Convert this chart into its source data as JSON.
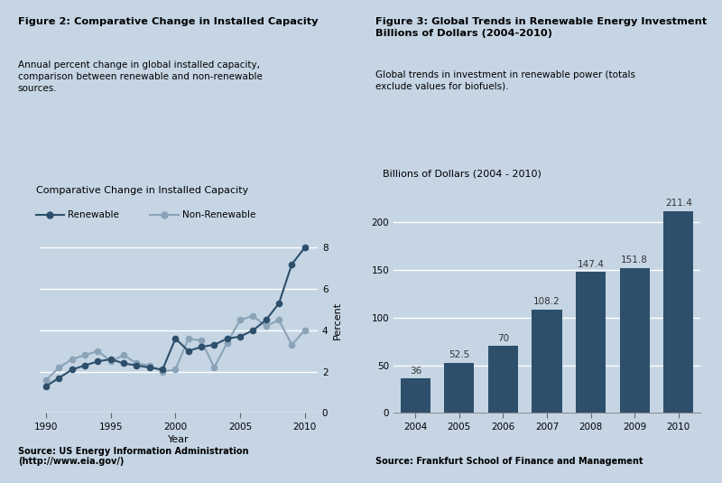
{
  "bg_color": "#c5d5e4",
  "fig2_title": "Figure 2: Comparative Change in Installed Capacity",
  "fig2_subtitle": "Annual percent change in global installed capacity,\ncomparison between renewable and non-renewable\nsources.",
  "fig2_chart_title": "Comparative Change in Installed Capacity",
  "fig2_xlabel": "Year",
  "fig2_ylabel": "Percent",
  "fig2_source": "Source: US Energy Information Administration\n(http://www.eia.gov/)",
  "renewable_years": [
    1990,
    1991,
    1992,
    1993,
    1994,
    1995,
    1996,
    1997,
    1998,
    1999,
    2000,
    2001,
    2002,
    2003,
    2004,
    2005,
    2006,
    2007,
    2008,
    2009,
    2010
  ],
  "renewable_values": [
    1.3,
    1.7,
    2.1,
    2.3,
    2.5,
    2.6,
    2.4,
    2.3,
    2.2,
    2.1,
    3.6,
    3.0,
    3.2,
    3.3,
    3.6,
    3.7,
    4.0,
    4.5,
    5.3,
    7.2,
    8.0
  ],
  "nonrenewable_years": [
    1990,
    1991,
    1992,
    1993,
    1994,
    1995,
    1996,
    1997,
    1998,
    1999,
    2000,
    2001,
    2002,
    2003,
    2004,
    2005,
    2006,
    2007,
    2008,
    2009,
    2010
  ],
  "nonrenewable_values": [
    1.6,
    2.2,
    2.6,
    2.8,
    3.0,
    2.5,
    2.8,
    2.4,
    2.3,
    2.0,
    2.1,
    3.6,
    3.5,
    2.2,
    3.4,
    4.5,
    4.7,
    4.2,
    4.5,
    3.3,
    4.0
  ],
  "renewable_color": "#2d4f6b",
  "nonrenewable_color": "#8aa3b8",
  "grid_color": "#ffffff",
  "fig2_ylim": [
    0,
    9
  ],
  "fig2_yticks": [
    0,
    2,
    4,
    6,
    8
  ],
  "fig2_xticks": [
    1990,
    1995,
    2000,
    2005,
    2010
  ],
  "fig3_title": "Figure 3: Global Trends in Renewable Energy Investment\nBillions of Dollars (2004-2010)",
  "fig3_subtitle": "Global trends in investment in renewable power (totals\nexclude values for biofuels).",
  "fig3_chart_title": "Billions of Dollars (2004 - 2010)",
  "fig3_source": "Source: Frankfurt School of Finance and Management",
  "bar_years": [
    "2004",
    "2005",
    "2006",
    "2007",
    "2008",
    "2009",
    "2010"
  ],
  "bar_values": [
    36,
    52.5,
    70,
    108.2,
    147.4,
    151.8,
    211.4
  ],
  "bar_color": "#2d4f6b",
  "fig3_ylim": [
    0,
    230
  ],
  "fig3_yticks": [
    0,
    50,
    100,
    150,
    200
  ]
}
